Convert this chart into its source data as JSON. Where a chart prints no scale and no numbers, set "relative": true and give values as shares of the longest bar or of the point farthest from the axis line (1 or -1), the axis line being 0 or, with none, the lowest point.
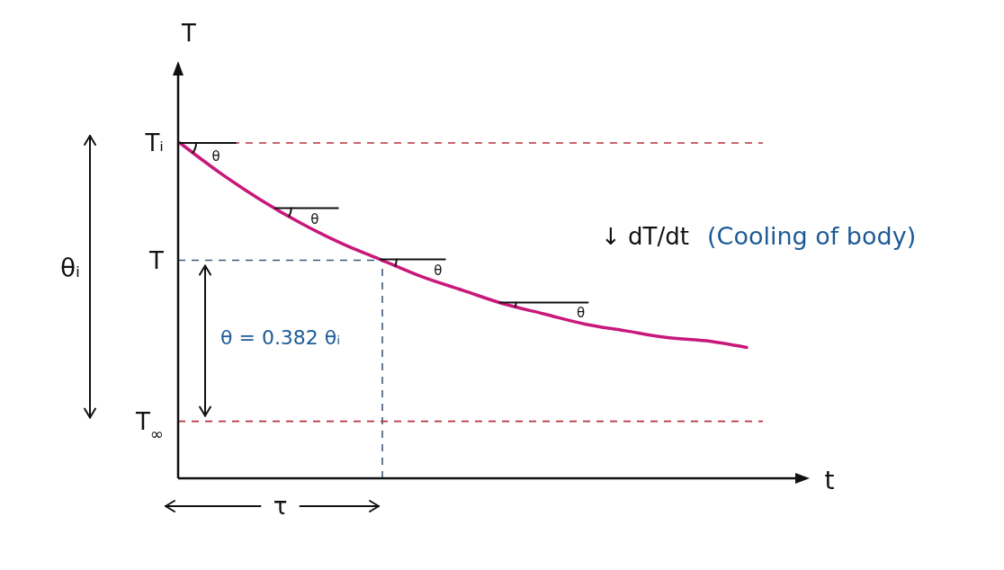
{
  "chart_data": {
    "type": "line",
    "xlabel": "t",
    "ylabel": "T",
    "relative": true,
    "categories": [
      null,
      null,
      null,
      null,
      null,
      null,
      null,
      null,
      null,
      null,
      null,
      null,
      null,
      null,
      null
    ],
    "series": [
      {
        "color": "#c8187a",
        "values": [
          1,
          0.91,
          0.83,
          0.76,
          0.7,
          0.65,
          0.6,
          0.56,
          0.52,
          0.49,
          0.46,
          0.44,
          0.42,
          0.41,
          0.39
        ]
      }
    ],
    "ref_lines": [
      {
        "axis": "y",
        "value": 1,
        "label": "Tᵢ",
        "color": "#b5343e",
        "line_style": "dashed"
      },
      {
        "axis": "y",
        "value": 0.65,
        "label": "T",
        "color": "#3e5a78",
        "line_style": "dashed"
      },
      {
        "axis": "y",
        "value": 0.17,
        "label": "T$_{∞}$",
        "color": "#b5343e",
        "line_style": "dashed"
      }
    ],
    "annotations": [
      "θᵢ",
      "θ = 0.382 θᵢ",
      "θ",
      "θ",
      "θ",
      "θ",
      "↓ dT/dt",
      "(Cooling of body)",
      "τ"
    ]
  }
}
